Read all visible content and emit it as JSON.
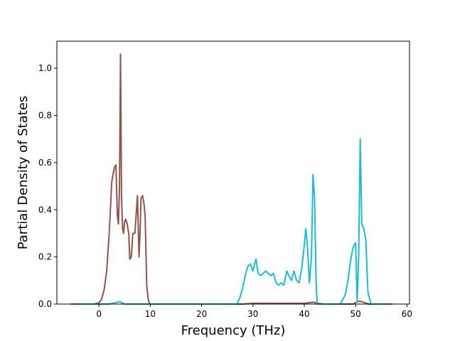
{
  "chart_data": {
    "type": "line",
    "xlabel": "Frequency (THz)",
    "ylabel": "Partial Density of States",
    "xlim": [
      -8.2,
      60.5
    ],
    "ylim": [
      0.0,
      1.115
    ],
    "xticks": [
      0,
      10,
      20,
      30,
      40,
      50,
      60
    ],
    "yticks": [
      0.0,
      0.2,
      0.4,
      0.6,
      0.8,
      1.0
    ],
    "xtick_labels": [
      "0",
      "10",
      "20",
      "30",
      "40",
      "50",
      "60"
    ],
    "ytick_labels": [
      "0.0",
      "0.2",
      "0.4",
      "0.6",
      "0.8",
      "1.0"
    ],
    "grid": false,
    "legend": "none",
    "series": [
      {
        "color": "#8c564b",
        "x": [
          -5.5,
          -1.0,
          0.0,
          0.5,
          1.0,
          1.5,
          2.0,
          2.5,
          3.0,
          3.3,
          3.6,
          3.8,
          4.0,
          4.2,
          4.4,
          4.6,
          4.8,
          5.0,
          5.2,
          5.5,
          5.8,
          6.0,
          6.3,
          6.6,
          7.0,
          7.5,
          7.8,
          8.0,
          8.2,
          8.5,
          8.8,
          9.0,
          9.3,
          9.6,
          9.8,
          10.0,
          12.0,
          28.0,
          30.0,
          33.0,
          36.0,
          40.0,
          41.0,
          41.8,
          42.5,
          44.0,
          49.5,
          50.3,
          50.8,
          51.5,
          52.5,
          57.2
        ],
        "y": [
          0.0,
          0.0,
          0.005,
          0.02,
          0.06,
          0.14,
          0.3,
          0.52,
          0.58,
          0.59,
          0.37,
          0.34,
          0.5,
          1.06,
          0.45,
          0.32,
          0.3,
          0.35,
          0.36,
          0.34,
          0.3,
          0.19,
          0.2,
          0.3,
          0.3,
          0.46,
          0.2,
          0.3,
          0.45,
          0.46,
          0.42,
          0.37,
          0.08,
          0.02,
          0.005,
          0.0,
          0.0,
          0.0,
          0.003,
          0.003,
          0.003,
          0.003,
          0.006,
          0.008,
          0.003,
          0.0,
          0.0,
          0.01,
          0.012,
          0.008,
          0.0,
          0.0
        ]
      },
      {
        "color": "#17becf",
        "x": [
          -5.5,
          2.0,
          3.0,
          4.0,
          4.5,
          5.0,
          10.0,
          26.9,
          27.5,
          28.0,
          28.5,
          29.0,
          29.5,
          30.0,
          30.3,
          30.6,
          31.0,
          31.5,
          32.0,
          32.5,
          33.0,
          33.5,
          34.0,
          34.5,
          35.0,
          35.5,
          36.0,
          36.3,
          36.6,
          37.0,
          37.5,
          38.0,
          38.5,
          39.0,
          39.5,
          40.0,
          40.3,
          40.6,
          41.0,
          41.4,
          41.7,
          42.0,
          42.3,
          42.5,
          43.0,
          47.0,
          48.0,
          48.5,
          49.0,
          49.4,
          49.7,
          50.0,
          50.3,
          50.6,
          50.9,
          51.2,
          51.6,
          52.0,
          52.4,
          53.0,
          57.2
        ],
        "y": [
          0.0,
          0.0,
          0.005,
          0.01,
          0.005,
          0.0,
          0.0,
          0.0,
          0.03,
          0.07,
          0.12,
          0.16,
          0.17,
          0.14,
          0.17,
          0.19,
          0.13,
          0.12,
          0.13,
          0.14,
          0.13,
          0.12,
          0.13,
          0.09,
          0.08,
          0.09,
          0.08,
          0.11,
          0.14,
          0.12,
          0.1,
          0.14,
          0.1,
          0.09,
          0.15,
          0.25,
          0.32,
          0.25,
          0.09,
          0.2,
          0.55,
          0.45,
          0.1,
          0.0,
          0.0,
          0.0,
          0.04,
          0.1,
          0.18,
          0.23,
          0.25,
          0.26,
          0.01,
          0.2,
          0.7,
          0.34,
          0.32,
          0.27,
          0.05,
          0.0,
          0.0
        ]
      }
    ]
  }
}
